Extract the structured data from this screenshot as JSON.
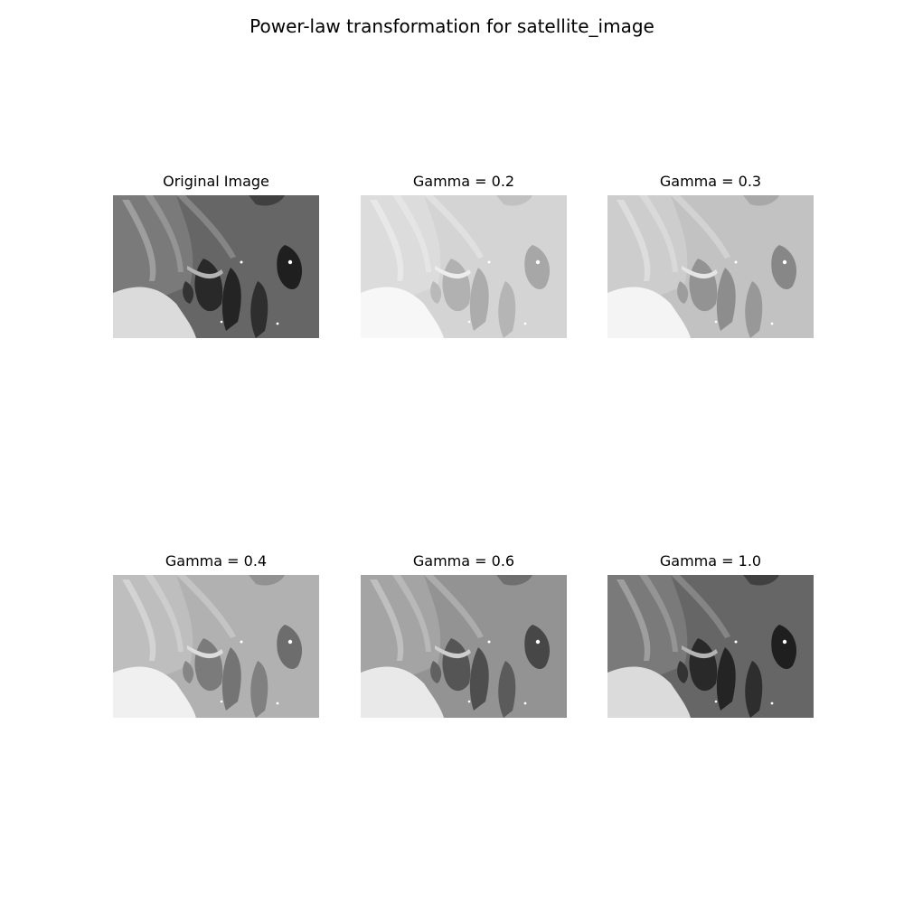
{
  "figure": {
    "title": "Power-law transformation for satellite_image"
  },
  "panels": [
    {
      "title": "Original Image",
      "gamma": null
    },
    {
      "title": "Gamma = 0.2",
      "gamma": 0.2
    },
    {
      "title": "Gamma = 0.3",
      "gamma": 0.3
    },
    {
      "title": "Gamma = 0.4",
      "gamma": 0.4
    },
    {
      "title": "Gamma = 0.6",
      "gamma": 0.6
    },
    {
      "title": "Gamma = 1.0",
      "gamma": 1.0
    }
  ]
}
